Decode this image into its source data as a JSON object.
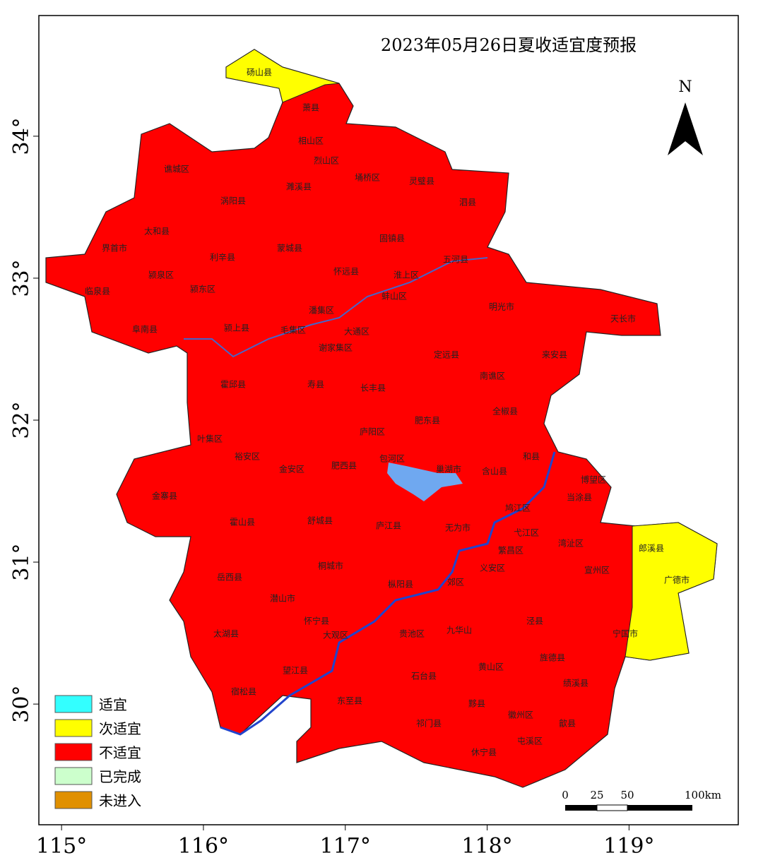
{
  "map": {
    "title": "2023年05月26日夏收适宜度预报",
    "north": "N",
    "xlim": [
      114.84,
      119.77
    ],
    "ylim": [
      29.15,
      34.85
    ],
    "xticks": [
      {
        "value": 115,
        "label": "115°"
      },
      {
        "value": 116,
        "label": "116°"
      },
      {
        "value": 117,
        "label": "117°"
      },
      {
        "value": 118,
        "label": "118°"
      },
      {
        "value": 119,
        "label": "119°"
      }
    ],
    "yticks": [
      {
        "value": 30,
        "label": "30°"
      },
      {
        "value": 31,
        "label": "31°"
      },
      {
        "value": 32,
        "label": "32°"
      },
      {
        "value": 33,
        "label": "33°"
      },
      {
        "value": 34,
        "label": "34°"
      }
    ],
    "legend": [
      {
        "name": "适宜",
        "color": "#33ffff"
      },
      {
        "name": "次适宜",
        "color": "#ffff00"
      },
      {
        "name": "不适宜",
        "color": "#ff0000"
      },
      {
        "name": "已完成",
        "color": "#ccffcc"
      },
      {
        "name": "未进入",
        "color": "#e09000"
      }
    ],
    "scale_bar": [
      "0",
      "25",
      "50",
      "100km"
    ],
    "regions": [
      "砀山县",
      "萧县",
      "相山区",
      "烈山区",
      "濉溪县",
      "埇桥区",
      "灵璧县",
      "泗县",
      "谯城区",
      "涡阳县",
      "太和县",
      "界首市",
      "利辛县",
      "蒙城县",
      "固镇县",
      "五河县",
      "颍泉区",
      "颍东区",
      "临泉县",
      "怀远县",
      "淮上区",
      "蚌山区",
      "明光市",
      "天长市",
      "潘集区",
      "颍上县",
      "阜南县",
      "毛集区",
      "大通区",
      "谢家集区",
      "定远县",
      "来安县",
      "南谯区",
      "霍邱县",
      "寿县",
      "长丰县",
      "全椒县",
      "肥东县",
      "庐阳区",
      "叶集区",
      "裕安区",
      "包河区",
      "和县",
      "金安区",
      "肥西县",
      "巢湖市",
      "含山县",
      "博望区",
      "当涂县",
      "金寨县",
      "鸠江区",
      "霍山县",
      "舒城县",
      "庐江县",
      "无为市",
      "弋江区",
      "湾沚区",
      "繁昌区",
      "郎溪县",
      "宣州区",
      "桐城市",
      "义安区",
      "广德市",
      "岳西县",
      "枞阳县",
      "郊区",
      "潜山市",
      "泾县",
      "怀宁县",
      "九华山",
      "宁国市",
      "太湖县",
      "大观区",
      "贵池区",
      "黄山区",
      "旌德县",
      "望江县",
      "石台县",
      "绩溪县",
      "宿松县",
      "东至县",
      "黟县",
      "徽州区",
      "歙县",
      "祁门县",
      "屯溪区",
      "休宁县"
    ]
  }
}
